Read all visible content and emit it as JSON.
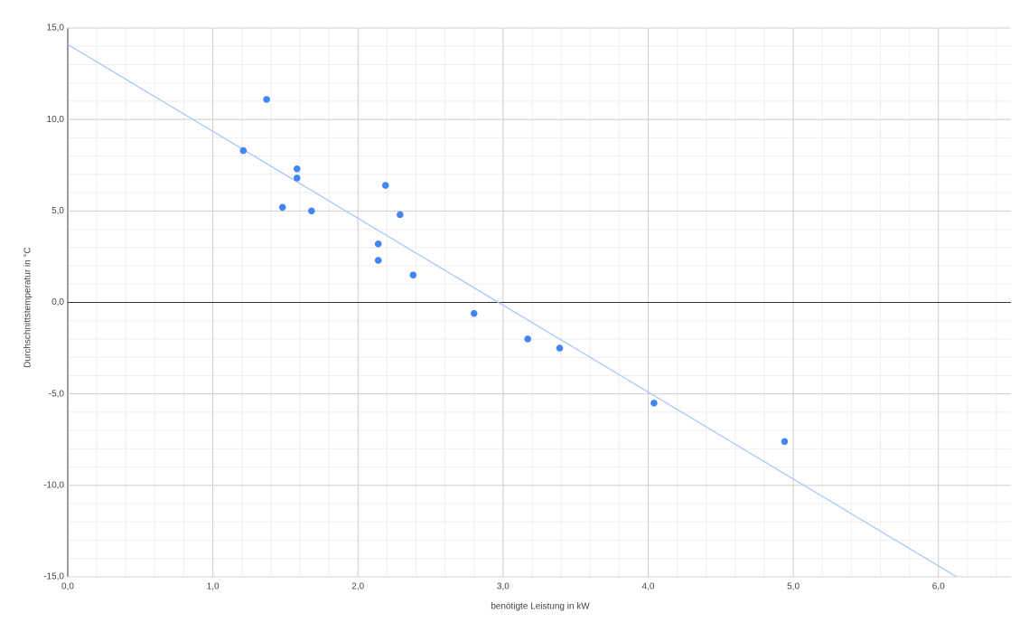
{
  "chart_data": {
    "type": "scatter",
    "x_label": "benötigte Leistung in kW",
    "y_label": "Durchschnittstemperatur in °C",
    "x": [
      1.21,
      1.37,
      1.58,
      1.58,
      1.48,
      1.68,
      2.19,
      2.29,
      2.14,
      2.14,
      2.38,
      2.8,
      3.17,
      3.39,
      4.04,
      4.94
    ],
    "values": [
      8.3,
      11.1,
      7.3,
      6.8,
      5.2,
      5.0,
      6.4,
      4.8,
      3.2,
      2.3,
      1.5,
      -0.6,
      -2.0,
      -2.5,
      -5.5,
      -7.6
    ],
    "color": "#4285f4",
    "trendline": {
      "intercept": 14.1,
      "slope": -4.75,
      "color": "#a8c7fa"
    },
    "xlim": [
      0,
      6.5
    ],
    "ylim": [
      -15,
      15
    ],
    "xticks": [
      {
        "value": 0,
        "label": "0,0"
      },
      {
        "value": 1,
        "label": "1,0"
      },
      {
        "value": 2,
        "label": "2,0"
      },
      {
        "value": 3,
        "label": "3,0"
      },
      {
        "value": 4,
        "label": "4,0"
      },
      {
        "value": 5,
        "label": "5,0"
      },
      {
        "value": 6,
        "label": "6,0"
      }
    ],
    "yticks": [
      {
        "value": -15,
        "label": "-15,0"
      },
      {
        "value": -10,
        "label": "-10,0"
      },
      {
        "value": -5,
        "label": "-5,0"
      },
      {
        "value": 0,
        "label": "0,0"
      },
      {
        "value": 5,
        "label": "5,0"
      },
      {
        "value": 10,
        "label": "10,0"
      },
      {
        "value": 15,
        "label": "15,0"
      }
    ],
    "grid": true,
    "minor_grid": {
      "x_divisions": 5,
      "y_divisions": 5
    }
  }
}
